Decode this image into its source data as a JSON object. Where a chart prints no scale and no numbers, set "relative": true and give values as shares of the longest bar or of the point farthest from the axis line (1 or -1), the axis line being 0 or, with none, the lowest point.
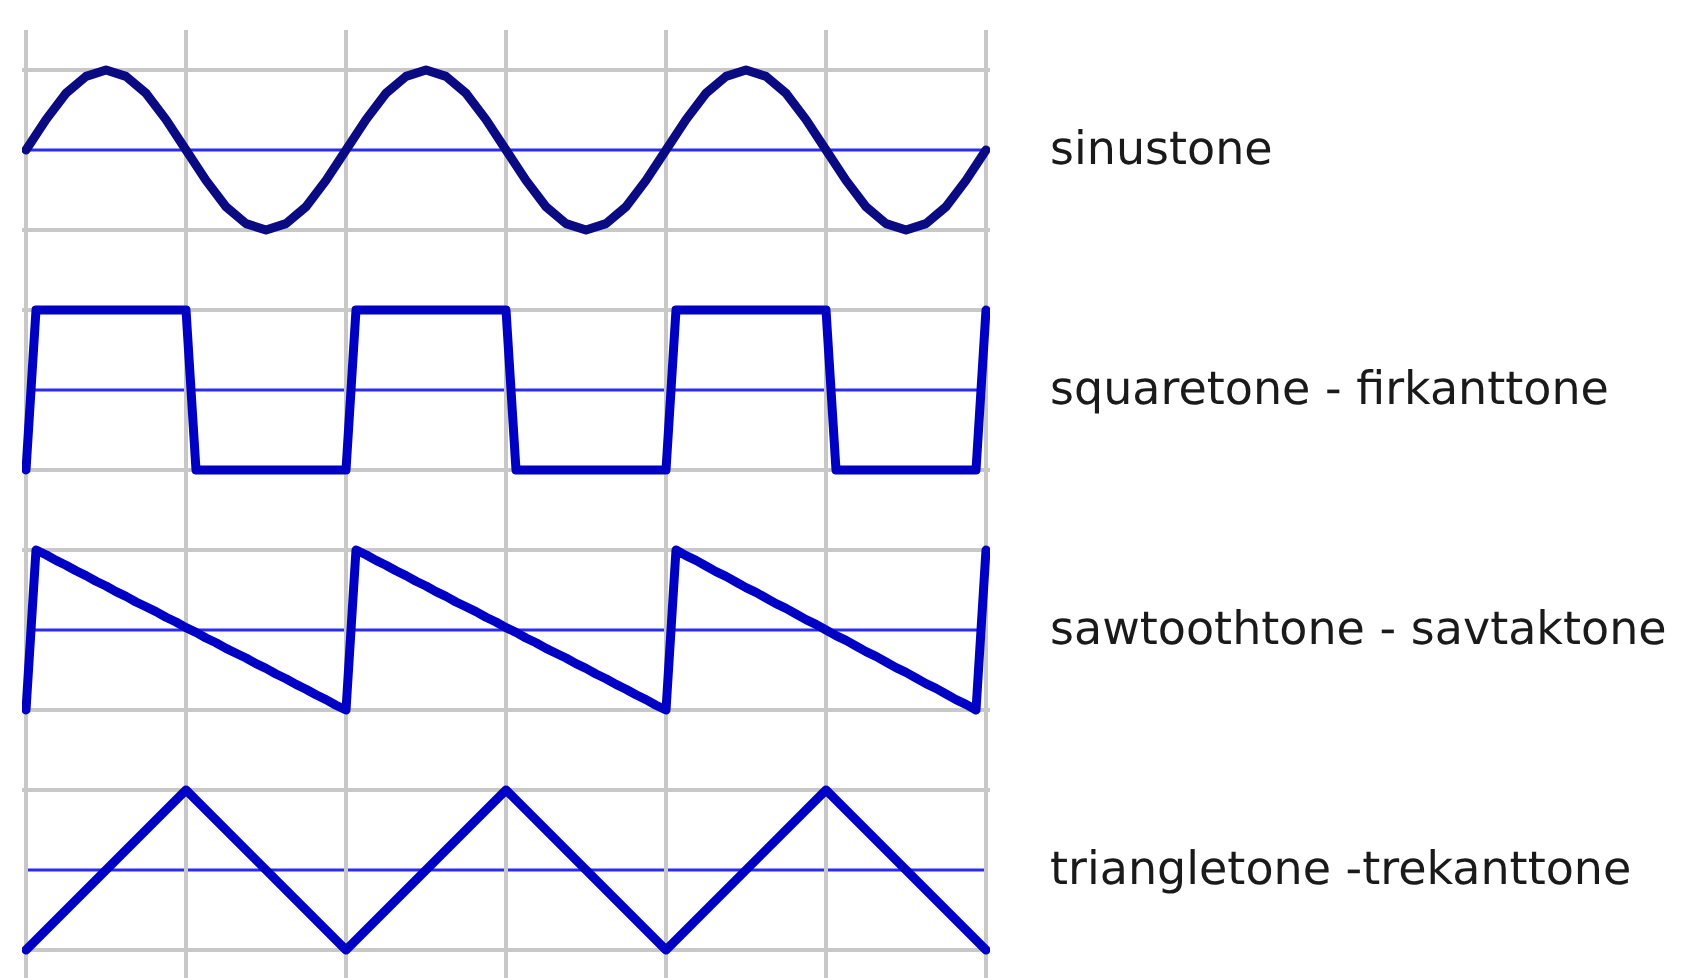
{
  "chart_data": [
    {
      "type": "line",
      "relative": true,
      "grid": true,
      "categories": [
        null,
        null,
        null,
        null,
        null,
        null,
        null,
        null,
        null,
        null,
        null,
        null,
        null,
        null,
        null,
        null,
        null,
        null,
        null,
        null,
        null,
        null,
        null,
        null,
        null,
        null,
        null,
        null,
        null,
        null,
        null,
        null,
        null,
        null,
        null,
        null,
        null,
        null,
        null,
        null,
        null,
        null,
        null,
        null,
        null,
        null,
        null,
        null,
        null
      ],
      "ref_lines": [
        {
          "axis": "y",
          "value": 0,
          "color": "#2a2aff"
        }
      ],
      "series": [
        {
          "name": "sinustone",
          "color": "#0a0a82",
          "values": [
            0,
            0.38,
            0.71,
            0.92,
            1,
            0.92,
            0.71,
            0.38,
            0,
            -0.38,
            -0.71,
            -0.92,
            -1,
            -0.92,
            -0.71,
            -0.38,
            0,
            0.38,
            0.71,
            0.92,
            1,
            0.92,
            0.71,
            0.38,
            0,
            -0.38,
            -0.71,
            -0.92,
            -1,
            -0.92,
            -0.71,
            -0.38,
            0,
            0.38,
            0.71,
            0.92,
            1,
            0.92,
            0.71,
            0.38,
            0,
            -0.38,
            -0.71,
            -0.92,
            -1,
            -0.92,
            -0.71,
            -0.38,
            0
          ]
        }
      ]
    },
    {
      "type": "line",
      "relative": true,
      "grid": true,
      "categories": [
        null,
        null,
        null,
        null,
        null,
        null,
        null,
        null,
        null,
        null,
        null,
        null,
        null,
        null,
        null,
        null,
        null,
        null,
        null,
        null,
        null,
        null,
        null,
        null,
        null,
        null,
        null,
        null,
        null,
        null,
        null,
        null,
        null,
        null,
        null,
        null,
        null,
        null,
        null,
        null,
        null,
        null,
        null,
        null,
        null,
        null,
        null,
        null,
        null,
        null,
        null,
        null,
        null,
        null,
        null,
        null,
        null,
        null,
        null,
        null,
        null,
        null,
        null,
        null,
        null,
        null,
        null,
        null,
        null,
        null,
        null,
        null,
        null,
        null,
        null,
        null,
        null,
        null,
        null,
        null,
        null,
        null,
        null,
        null,
        null,
        null,
        null,
        null,
        null,
        null,
        null,
        null,
        null,
        null,
        null,
        null,
        null
      ],
      "ref_lines": [
        {
          "axis": "y",
          "value": 0,
          "color": "#2a2aff"
        }
      ],
      "series": [
        {
          "name": "squaretone - firkanttone",
          "color": "#0000c4",
          "values": [
            -1,
            1,
            1,
            1,
            1,
            1,
            1,
            1,
            1,
            1,
            1,
            1,
            1,
            1,
            1,
            1,
            1,
            -1,
            -1,
            -1,
            -1,
            -1,
            -1,
            -1,
            -1,
            -1,
            -1,
            -1,
            -1,
            -1,
            -1,
            -1,
            -1,
            1,
            1,
            1,
            1,
            1,
            1,
            1,
            1,
            1,
            1,
            1,
            1,
            1,
            1,
            1,
            1,
            -1,
            -1,
            -1,
            -1,
            -1,
            -1,
            -1,
            -1,
            -1,
            -1,
            -1,
            -1,
            -1,
            -1,
            -1,
            -1,
            1,
            1,
            1,
            1,
            1,
            1,
            1,
            1,
            1,
            1,
            1,
            1,
            1,
            1,
            1,
            1,
            -1,
            -1,
            -1,
            -1,
            -1,
            -1,
            -1,
            -1,
            -1,
            -1,
            -1,
            -1,
            -1,
            -1,
            -1,
            1
          ]
        }
      ]
    },
    {
      "type": "line",
      "relative": true,
      "grid": true,
      "categories": [
        null,
        null,
        null,
        null,
        null,
        null,
        null,
        null,
        null,
        null,
        null,
        null,
        null,
        null,
        null,
        null,
        null,
        null,
        null,
        null,
        null,
        null,
        null,
        null,
        null,
        null,
        null,
        null,
        null,
        null,
        null,
        null,
        null,
        null,
        null,
        null,
        null,
        null,
        null,
        null,
        null,
        null,
        null,
        null,
        null,
        null,
        null,
        null,
        null,
        null,
        null,
        null,
        null,
        null,
        null,
        null,
        null,
        null,
        null,
        null,
        null,
        null,
        null,
        null,
        null,
        null,
        null,
        null,
        null,
        null,
        null,
        null,
        null,
        null,
        null,
        null,
        null,
        null,
        null,
        null,
        null,
        null,
        null,
        null,
        null,
        null,
        null,
        null,
        null,
        null,
        null,
        null,
        null,
        null,
        null,
        null,
        null
      ],
      "ref_lines": [
        {
          "axis": "y",
          "value": 0,
          "color": "#2a2aff"
        }
      ],
      "series": [
        {
          "name": "sawtoothtone - savtaktone",
          "color": "#0000c4",
          "values": [
            -1,
            1,
            0.94,
            0.87,
            0.81,
            0.74,
            0.68,
            0.61,
            0.55,
            0.48,
            0.42,
            0.35,
            0.29,
            0.23,
            0.16,
            0.1,
            0.03,
            -0.03,
            -0.1,
            -0.16,
            -0.23,
            -0.29,
            -0.35,
            -0.42,
            -0.48,
            -0.55,
            -0.61,
            -0.68,
            -0.74,
            -0.81,
            -0.87,
            -0.94,
            -1,
            1,
            0.94,
            0.87,
            0.81,
            0.74,
            0.68,
            0.61,
            0.55,
            0.48,
            0.42,
            0.35,
            0.29,
            0.23,
            0.16,
            0.1,
            0.03,
            -0.03,
            -0.1,
            -0.16,
            -0.23,
            -0.29,
            -0.35,
            -0.42,
            -0.48,
            -0.55,
            -0.61,
            -0.68,
            -0.74,
            -0.81,
            -0.87,
            -0.94,
            -1,
            1,
            0.93,
            0.87,
            0.8,
            0.73,
            0.67,
            0.6,
            0.53,
            0.47,
            0.4,
            0.33,
            0.27,
            0.2,
            0.13,
            0.07,
            0,
            -0.07,
            -0.13,
            -0.2,
            -0.27,
            -0.33,
            -0.4,
            -0.47,
            -0.53,
            -0.6,
            -0.67,
            -0.73,
            -0.8,
            -0.87,
            -0.93,
            -1,
            1
          ]
        }
      ]
    },
    {
      "type": "line",
      "relative": true,
      "grid": true,
      "categories": [
        null,
        null,
        null,
        null,
        null,
        null,
        null
      ],
      "ref_lines": [
        {
          "axis": "y",
          "value": 0,
          "color": "#2a2aff"
        }
      ],
      "series": [
        {
          "name": "triangletone -trekanttone",
          "color": "#0000c4",
          "values": [
            -1,
            1,
            -1,
            1,
            -1,
            1,
            -1
          ]
        }
      ]
    }
  ]
}
